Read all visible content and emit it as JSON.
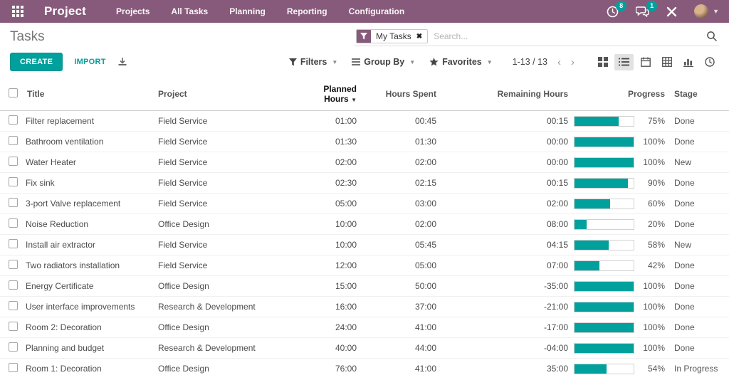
{
  "colors": {
    "brand_purple": "#875A7B",
    "accent_teal": "#00A09D"
  },
  "topbar": {
    "brand": "Project",
    "menu": [
      "Projects",
      "All Tasks",
      "Planning",
      "Reporting",
      "Configuration"
    ],
    "activity_count": "8",
    "message_count": "1"
  },
  "control_panel": {
    "title": "Tasks",
    "search": {
      "facet_label": "My Tasks",
      "placeholder": "Search..."
    },
    "create_label": "CREATE",
    "import_label": "IMPORT",
    "filters_label": "Filters",
    "group_by_label": "Group By",
    "favorites_label": "Favorites",
    "pager": "1-13 / 13"
  },
  "table": {
    "headers": {
      "title": "Title",
      "project": "Project",
      "planned": "Planned Hours",
      "spent": "Hours Spent",
      "remaining": "Remaining Hours",
      "progress": "Progress",
      "stage": "Stage"
    },
    "sort_caret": "▼",
    "rows": [
      {
        "title": "Filter replacement",
        "project": "Field Service",
        "planned": "01:00",
        "spent": "00:45",
        "remaining": "00:15",
        "progress": 75,
        "stage": "Done"
      },
      {
        "title": "Bathroom ventilation",
        "project": "Field Service",
        "planned": "01:30",
        "spent": "01:30",
        "remaining": "00:00",
        "progress": 100,
        "stage": "Done"
      },
      {
        "title": "Water Heater",
        "project": "Field Service",
        "planned": "02:00",
        "spent": "02:00",
        "remaining": "00:00",
        "progress": 100,
        "stage": "New"
      },
      {
        "title": "Fix sink",
        "project": "Field Service",
        "planned": "02:30",
        "spent": "02:15",
        "remaining": "00:15",
        "progress": 90,
        "stage": "Done"
      },
      {
        "title": "3-port Valve replacement",
        "project": "Field Service",
        "planned": "05:00",
        "spent": "03:00",
        "remaining": "02:00",
        "progress": 60,
        "stage": "Done"
      },
      {
        "title": "Noise Reduction",
        "project": "Office Design",
        "planned": "10:00",
        "spent": "02:00",
        "remaining": "08:00",
        "progress": 20,
        "stage": "Done"
      },
      {
        "title": "Install air extractor",
        "project": "Field Service",
        "planned": "10:00",
        "spent": "05:45",
        "remaining": "04:15",
        "progress": 58,
        "stage": "New"
      },
      {
        "title": "Two radiators installation",
        "project": "Field Service",
        "planned": "12:00",
        "spent": "05:00",
        "remaining": "07:00",
        "progress": 42,
        "stage": "Done"
      },
      {
        "title": "Energy Certificate",
        "project": "Office Design",
        "planned": "15:00",
        "spent": "50:00",
        "remaining": "-35:00",
        "progress": 100,
        "stage": "Done"
      },
      {
        "title": "User interface improvements",
        "project": "Research & Development",
        "planned": "16:00",
        "spent": "37:00",
        "remaining": "-21:00",
        "progress": 100,
        "stage": "Done"
      },
      {
        "title": "Room 2: Decoration",
        "project": "Office Design",
        "planned": "24:00",
        "spent": "41:00",
        "remaining": "-17:00",
        "progress": 100,
        "stage": "Done"
      },
      {
        "title": "Planning and budget",
        "project": "Research & Development",
        "planned": "40:00",
        "spent": "44:00",
        "remaining": "-04:00",
        "progress": 100,
        "stage": "Done"
      },
      {
        "title": "Room 1: Decoration",
        "project": "Office Design",
        "planned": "76:00",
        "spent": "41:00",
        "remaining": "35:00",
        "progress": 54,
        "stage": "In Progress"
      }
    ]
  }
}
